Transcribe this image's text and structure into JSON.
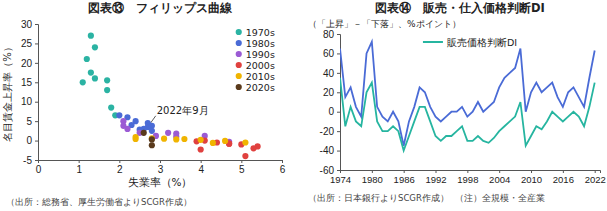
{
  "chart_data": [
    {
      "type": "scatter",
      "title": "図表⑬　フィリップス曲線",
      "x_label": "失業率（%）",
      "y_label": "名目賃金上昇率（%）",
      "xlim": [
        0,
        6
      ],
      "xticks": [
        0,
        1,
        2,
        3,
        4,
        5,
        6
      ],
      "ylim": [
        -5,
        30
      ],
      "yticks": [
        -5,
        0,
        5,
        10,
        15,
        20,
        25,
        30
      ],
      "grid": false,
      "legend": "upper right",
      "marker": "circle",
      "series": [
        {
          "name": "1970s",
          "color": "#2bb3a3",
          "x": [
            1.1,
            1.2,
            1.3,
            1.3,
            1.4,
            1.4,
            1.7,
            1.7,
            1.8,
            1.9
          ],
          "values": [
            15,
            21,
            27,
            17.5,
            24,
            16,
            15.5,
            13,
            8.5,
            6.5
          ]
        },
        {
          "name": "1980s",
          "color": "#4a6bd6",
          "x": [
            2.0,
            2.2,
            2.4,
            2.7,
            2.7,
            2.6,
            2.8,
            2.8,
            2.5,
            2.3
          ],
          "values": [
            6.5,
            6,
            5,
            4.5,
            3.5,
            3,
            3.8,
            2.5,
            2.8,
            4
          ]
        },
        {
          "name": "1990s",
          "color": "#9b5bd4",
          "x": [
            2.1,
            2.1,
            2.2,
            2.5,
            2.9,
            3.2,
            3.4,
            3.4,
            4.1,
            4.7
          ],
          "values": [
            5,
            3.8,
            3,
            2,
            1.2,
            2,
            1.8,
            1,
            1.2,
            -0.3
          ]
        },
        {
          "name": "2000s",
          "color": "#e0413f",
          "x": [
            4.7,
            5.0,
            5.4,
            5.3,
            4.7,
            4.4,
            4.1,
            3.9,
            4.0,
            5.1
          ],
          "values": [
            -0.8,
            -1,
            -1.5,
            -2,
            -0.8,
            -0.5,
            0,
            -0.2,
            -2.3,
            -4
          ]
        },
        {
          "name": "2010s",
          "color": "#f0b400",
          "x": [
            5.1,
            4.6,
            4.3,
            4.0,
            3.6,
            3.4,
            3.1,
            2.8,
            2.4,
            2.4
          ],
          "values": [
            -0.5,
            -0.1,
            -0.6,
            0.2,
            0.4,
            0.3,
            0.5,
            0.6,
            0.9,
            0.4
          ]
        },
        {
          "name": "2020s",
          "color": "#5a3a1c",
          "x": [
            2.8,
            2.8,
            2.6
          ],
          "values": [
            -1.2,
            0.3,
            2.0
          ]
        }
      ],
      "annotations": [
        {
          "text": "2022年9月",
          "x": 2.6,
          "y": 2.0
        }
      ],
      "source": "（出所：総務省、厚生労働省よりSCGR作成）"
    },
    {
      "type": "line",
      "title": "図表⑭　販売・仕入価格判断DI",
      "y_label": "（「上昇」－「下落」、%ポイント）",
      "x": [
        1974,
        1975,
        1976,
        1977,
        1978,
        1979,
        1980,
        1981,
        1982,
        1983,
        1984,
        1985,
        1986,
        1987,
        1988,
        1989,
        1990,
        1991,
        1992,
        1993,
        1994,
        1995,
        1996,
        1997,
        1998,
        1999,
        2000,
        2001,
        2002,
        2003,
        2004,
        2005,
        2006,
        2007,
        2008,
        2009,
        2010,
        2011,
        2012,
        2013,
        2014,
        2015,
        2016,
        2017,
        2018,
        2019,
        2020,
        2021,
        2022
      ],
      "xlim": [
        1974,
        2023
      ],
      "xticks": [
        1974,
        1980,
        1986,
        1992,
        1998,
        2004,
        2010,
        2016,
        2022
      ],
      "ylim": [
        -60,
        80
      ],
      "yticks": [
        -60,
        -40,
        -20,
        0,
        20,
        40,
        60,
        80
      ],
      "grid": false,
      "legend": "upper center",
      "series": [
        {
          "color": "#4a6bd6",
          "values": [
            65,
            15,
            25,
            5,
            -5,
            60,
            72,
            5,
            -5,
            -10,
            0,
            -10,
            -35,
            -10,
            5,
            25,
            20,
            5,
            -5,
            -10,
            -5,
            0,
            0,
            5,
            -5,
            0,
            10,
            0,
            5,
            10,
            25,
            35,
            40,
            45,
            65,
            0,
            20,
            30,
            20,
            25,
            30,
            15,
            5,
            20,
            25,
            15,
            5,
            35,
            63
          ]
        },
        {
          "name": "販売価格判断DI",
          "color": "#26b5a0",
          "values": [
            35,
            -15,
            5,
            -10,
            -15,
            20,
            30,
            -10,
            -20,
            -20,
            -15,
            -20,
            -40,
            -25,
            -10,
            5,
            5,
            -10,
            -25,
            -30,
            -25,
            -25,
            -20,
            -15,
            -30,
            -30,
            -25,
            -30,
            -32,
            -27,
            -20,
            -15,
            -10,
            -5,
            10,
            -35,
            -25,
            -15,
            -18,
            -10,
            0,
            -5,
            -10,
            -5,
            0,
            -5,
            -15,
            5,
            30
          ]
        }
      ],
      "source": "（出所：日本銀行よりSCGR作成）",
      "note": "（注）全規模・全産業"
    }
  ]
}
